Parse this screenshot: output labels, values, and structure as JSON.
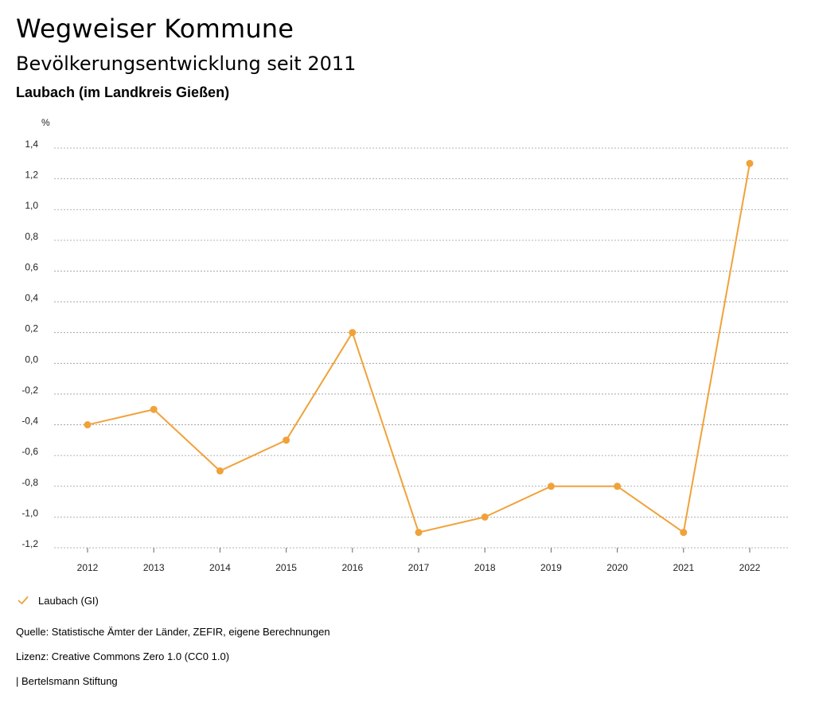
{
  "header": {
    "title": "Wegweiser Kommune",
    "subtitle": "Bevölkerungsentwicklung seit 2011",
    "region": "Laubach (im Landkreis Gießen)"
  },
  "chart_data": {
    "type": "line",
    "title": "Bevölkerungsentwicklung seit 2011",
    "xlabel": "",
    "ylabel": "%",
    "categories": [
      "2012",
      "2013",
      "2014",
      "2015",
      "2016",
      "2017",
      "2018",
      "2019",
      "2020",
      "2021",
      "2022"
    ],
    "series": [
      {
        "name": "Laubach (GI)",
        "color": "#f0a23a",
        "values": [
          -0.4,
          -0.3,
          -0.7,
          -0.5,
          0.2,
          -1.1,
          -1.0,
          -0.8,
          -0.8,
          -1.1,
          1.3
        ]
      }
    ],
    "ylim": [
      -1.2,
      1.4
    ],
    "yticks": [
      "1,4",
      "1,2",
      "1,0",
      "0,8",
      "0,6",
      "0,4",
      "0,2",
      "0,0",
      "-0,2",
      "-0,4",
      "-0,6",
      "-0,8",
      "-1,0",
      "-1,2"
    ],
    "ytick_values": [
      1.4,
      1.2,
      1.0,
      0.8,
      0.6,
      0.4,
      0.2,
      0.0,
      -0.2,
      -0.4,
      -0.6,
      -0.8,
      -1.0,
      -1.2
    ],
    "grid": true,
    "legend_position": "bottom-left"
  },
  "legend": {
    "label": "Laubach (GI)",
    "icon": "check-icon"
  },
  "footer": {
    "source": "Quelle: Statistische Ämter der Länder, ZEFIR, eigene Berechnungen",
    "license": "Lizenz: Creative Commons Zero 1.0 (CC0 1.0)",
    "publisher": "| Bertelsmann Stiftung"
  }
}
